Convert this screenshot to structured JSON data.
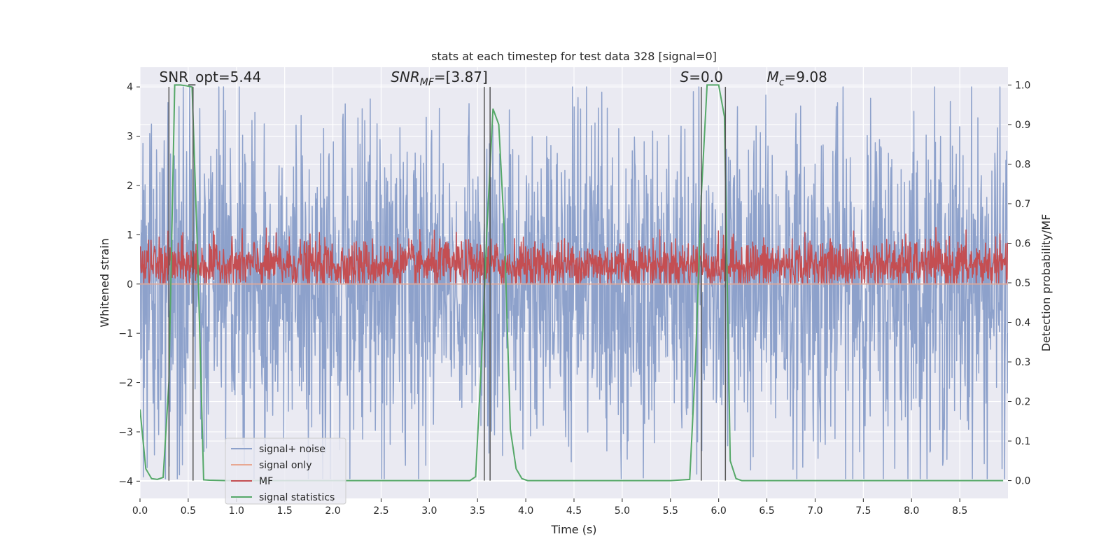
{
  "chart_data": {
    "type": "line",
    "title": "stats at each timestep for test data 328 [signal=0]",
    "xlabel": "Time (s)",
    "ylabel": "Whitened strain",
    "ylabel_right": "Detection probability/MF",
    "xlim": [
      0.0,
      9.0
    ],
    "ylim": [
      -4.35,
      4.4
    ],
    "ylim_right": [
      -0.045,
      1.045
    ],
    "x_ticks": [
      0.0,
      0.5,
      1.0,
      1.5,
      2.0,
      2.5,
      3.0,
      3.5,
      4.0,
      4.5,
      5.0,
      5.5,
      6.0,
      6.5,
      7.0,
      7.5,
      8.0,
      8.5
    ],
    "x_tick_labels": [
      "0.0",
      "0.5",
      "1.0",
      "1.5",
      "2.0",
      "2.5",
      "3.0",
      "3.5",
      "4.0",
      "4.5",
      "5.0",
      "5.5",
      "6.0",
      "6.5",
      "7.0",
      "7.5",
      "8.0",
      "8.5"
    ],
    "y_ticks": [
      -4,
      -3,
      -2,
      -1,
      0,
      1,
      2,
      3,
      4
    ],
    "y_tick_labels": [
      "−4",
      "−3",
      "−2",
      "−1",
      "0",
      "1",
      "2",
      "3",
      "4"
    ],
    "y_right_ticks": [
      0.0,
      0.1,
      0.2,
      0.3,
      0.4,
      0.5,
      0.6,
      0.7,
      0.8,
      0.9,
      1.0
    ],
    "y_right_tick_labels": [
      "0.0",
      "0.1",
      "0.2",
      "0.3",
      "0.4",
      "0.5",
      "0.6",
      "0.7",
      "0.8",
      "0.9",
      "1.0"
    ],
    "grid": true,
    "legend_position": "lower-left",
    "annotations": [
      {
        "text": "SNR_opt=5.44",
        "x": 0.2,
        "y": 4.1
      },
      {
        "text": "SNR_MF=[3.87]",
        "x": 2.6,
        "y": 4.1
      },
      {
        "text": "S=0.0",
        "x": 5.6,
        "y": 4.1
      },
      {
        "text": "M_c=9.08",
        "x": 6.5,
        "y": 4.1
      }
    ],
    "series": [
      {
        "name": "signal+ noise",
        "axis": "left",
        "color": "#8da1cb",
        "kind": "noise",
        "samples": 2048,
        "x_range": [
          0.0,
          9.0
        ],
        "typical_range": [
          -1.6,
          1.6
        ],
        "max": 4.0,
        "min": -3.95
      },
      {
        "name": "signal only",
        "axis": "left",
        "color": "#e8a892",
        "kind": "flat",
        "value": 0.0
      },
      {
        "name": "MF",
        "axis": "right",
        "color": "#c44e52",
        "kind": "noise",
        "samples": 2048,
        "x_range": [
          0.0,
          9.0
        ],
        "typical_range": [
          0.51,
          0.58
        ],
        "max": 0.64,
        "min": 0.5
      },
      {
        "name": "signal statistics",
        "axis": "right",
        "color": "#55a868",
        "x": [
          0.0,
          0.06,
          0.12,
          0.18,
          0.24,
          0.3,
          0.36,
          0.42,
          0.48,
          0.54,
          0.6,
          0.66,
          0.72,
          0.9,
          1.5,
          2.0,
          2.5,
          3.0,
          3.3,
          3.42,
          3.48,
          3.54,
          3.6,
          3.66,
          3.72,
          3.78,
          3.84,
          3.9,
          3.96,
          4.02,
          4.5,
          5.0,
          5.5,
          5.7,
          5.76,
          5.82,
          5.88,
          5.94,
          6.0,
          6.06,
          6.12,
          6.18,
          6.24,
          6.3,
          7.0,
          8.0,
          8.95
        ],
        "y": [
          0.18,
          0.03,
          0.005,
          0.003,
          0.008,
          0.25,
          1.0,
          1.0,
          0.998,
          0.995,
          0.55,
          0.002,
          0.001,
          0.0,
          0.0,
          0.0,
          0.0,
          0.0,
          0.0,
          0.0,
          0.01,
          0.3,
          0.65,
          0.94,
          0.9,
          0.62,
          0.13,
          0.03,
          0.005,
          0.0,
          0.0,
          0.0,
          0.0,
          0.003,
          0.3,
          0.72,
          1.0,
          1.0,
          1.0,
          0.92,
          0.05,
          0.005,
          0.0,
          0.0,
          0.0,
          0.0,
          0.0
        ]
      }
    ],
    "vertical_markers": [
      0.3,
      0.55,
      3.57,
      3.63,
      5.82,
      6.07
    ],
    "colors": {
      "background": "#eaeaf2",
      "grid": "#ffffff",
      "marker_lines": "#555555"
    }
  }
}
